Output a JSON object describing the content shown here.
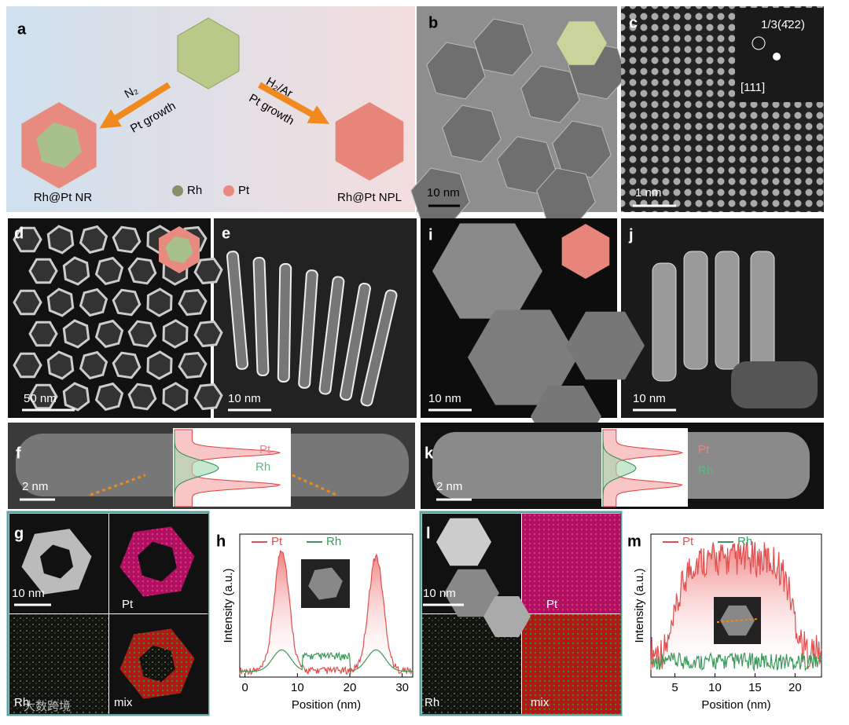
{
  "watermark": "大数跨境",
  "panels": {
    "a": {
      "label": "a",
      "n2": "N₂",
      "pt_growth_left": "Pt growth",
      "h2ar": "H₂/Ar",
      "pt_growth_right": "Pt growth",
      "nr": "Rh@Pt NR",
      "legend_rh": "Rh",
      "legend_pt": "Pt",
      "npl": "Rh@Pt NPL"
    },
    "b": {
      "label": "b",
      "scale": "10 nm"
    },
    "c": {
      "label": "c",
      "fft": "1/3(4̄22)",
      "zone": "[111]",
      "scale": "1 nm"
    },
    "d": {
      "label": "d",
      "scale": "50 nm"
    },
    "e": {
      "label": "e",
      "scale": "10 nm"
    },
    "i": {
      "label": "i",
      "scale": "10 nm"
    },
    "j": {
      "label": "j",
      "scale": "10 nm"
    },
    "f": {
      "label": "f",
      "scale": "2 nm",
      "pt": "Pt",
      "rh": "Rh"
    },
    "k": {
      "label": "k",
      "scale": "2 nm",
      "pt": "Pt",
      "rh": "Rh"
    },
    "g": {
      "label": "g",
      "scale": "10 nm",
      "pt": "Pt",
      "rh": "Rh",
      "mix": "mix"
    },
    "h": {
      "label": "h",
      "legend": [
        "Pt",
        "Rh"
      ],
      "ylabel": "Intensity (a.u.)",
      "xlabel": "Position (nm)",
      "xlim": [
        -1,
        32
      ],
      "xticks": [
        0,
        10,
        20,
        30
      ]
    },
    "l": {
      "label": "l",
      "scale": "10 nm",
      "pt": "Pt",
      "rh": "Rh",
      "mix": "mix"
    },
    "m": {
      "label": "m",
      "legend": [
        "Pt",
        "Rh"
      ],
      "ylabel": "Intensity (a.u.)",
      "xlabel": "Position (nm)",
      "xlim": [
        2,
        23.3
      ],
      "xticks": [
        5,
        10,
        15,
        20
      ]
    }
  }
}
